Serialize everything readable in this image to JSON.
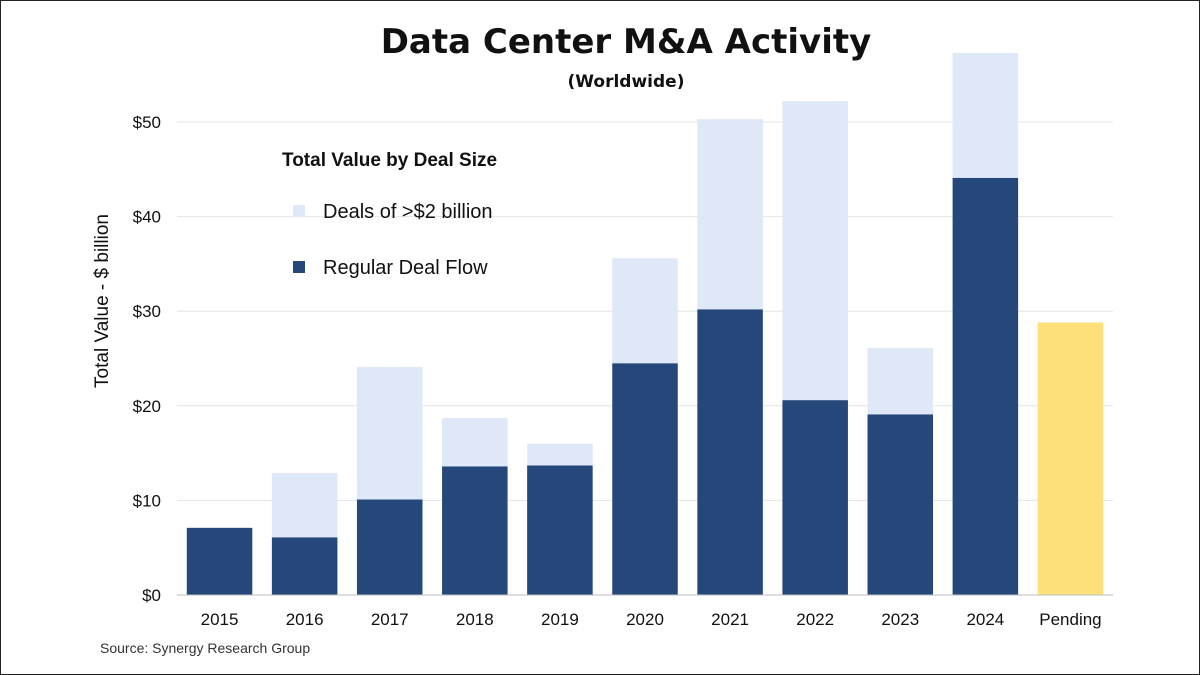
{
  "chart_data": {
    "type": "bar",
    "stacked": true,
    "title": "Data Center M&A Activity",
    "subtitle": "(Worldwide)",
    "ylabel": "Total Value - $ billion",
    "xlabel": "",
    "ylim": [
      0,
      55
    ],
    "yticks": [
      0,
      10,
      20,
      30,
      40,
      50
    ],
    "ytick_labels": [
      "$0",
      "$10",
      "$20",
      "$30",
      "$40",
      "$50"
    ],
    "categories": [
      "2015",
      "2016",
      "2017",
      "2018",
      "2019",
      "2020",
      "2021",
      "2022",
      "2023",
      "2024",
      "Pending"
    ],
    "series": [
      {
        "name": "Regular Deal Flow",
        "color": "#26477a",
        "values": [
          7.1,
          6.1,
          10.1,
          13.6,
          13.7,
          24.5,
          30.2,
          20.6,
          19.1,
          44.1,
          null
        ]
      },
      {
        "name": "Deals of >$2 billion",
        "color": "#dfe8f6",
        "values": [
          0,
          6.8,
          14.0,
          5.1,
          2.3,
          11.1,
          20.1,
          31.6,
          7.0,
          13.2,
          null
        ]
      },
      {
        "name": "Pending",
        "color": "#ffdf7a",
        "values": [
          null,
          null,
          null,
          null,
          null,
          null,
          null,
          null,
          null,
          null,
          28.8
        ]
      }
    ],
    "legend_title": "Total Value by Deal Size",
    "legend_entries": [
      {
        "label": "Deals of >$2 billion",
        "color": "#dfe8f6"
      },
      {
        "label": "Regular Deal Flow",
        "color": "#26477a"
      }
    ],
    "legend_position": "top-left",
    "grid": true,
    "source": "Source: Synergy Research Group"
  }
}
